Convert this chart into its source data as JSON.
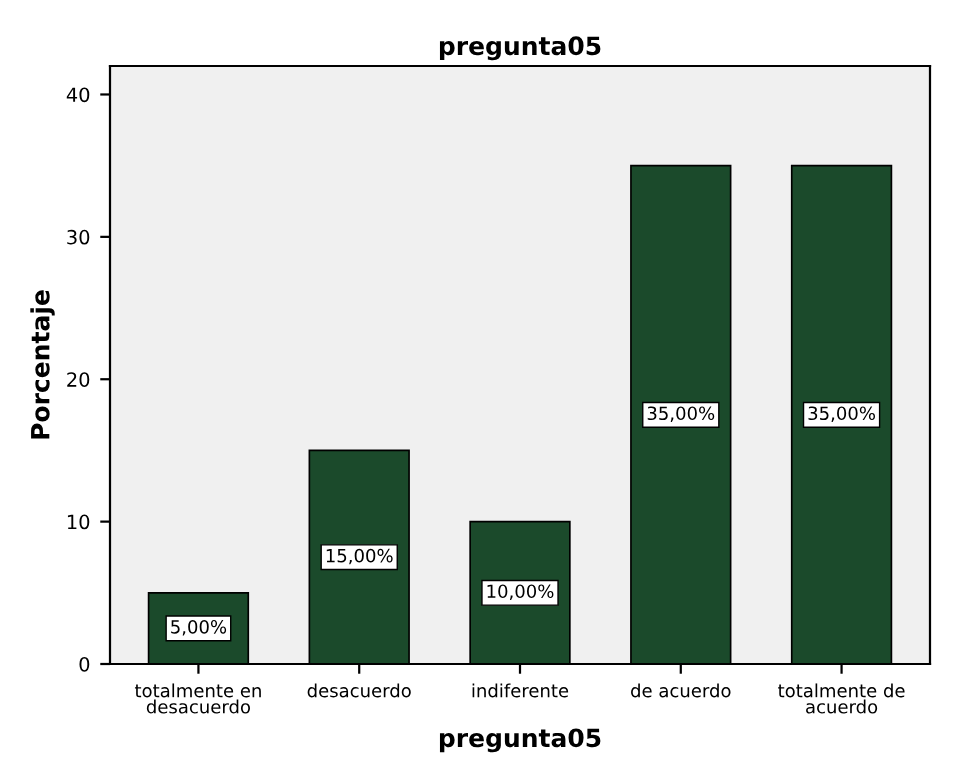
{
  "chart_data": {
    "type": "bar",
    "title": "pregunta05",
    "xlabel": "pregunta05",
    "ylabel": "Porcentaje",
    "categories": [
      "totalmente en\ndesacuerdo",
      "desacuerdo",
      "indiferente",
      "de acuerdo",
      "totalmente de\nacuerdo"
    ],
    "values": [
      5,
      15,
      10,
      35,
      35
    ],
    "value_labels": [
      "5,00%",
      "15,00%",
      "10,00%",
      "35,00%",
      "35,00%"
    ],
    "color": "#1b4a2b",
    "ylim": [
      0,
      42
    ],
    "yticks": [
      0,
      10,
      20,
      30,
      40
    ],
    "grid": false,
    "legend": false
  }
}
